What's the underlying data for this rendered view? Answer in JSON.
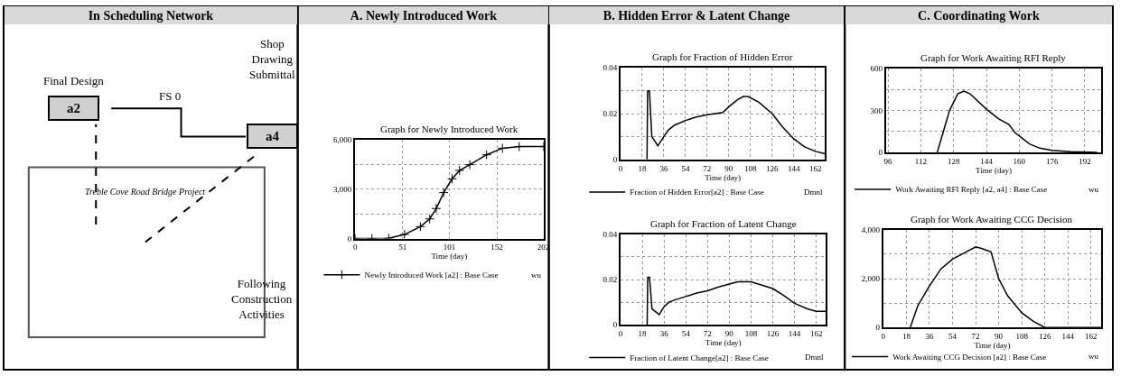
{
  "chart_data": [
    {
      "type": "other",
      "title": "In Scheduling Network",
      "annotations": [
        "Final Design",
        "a2",
        "FS 0",
        "Shop Drawing Submittal",
        "a4",
        "Treble Cove Road Bridge Project",
        "Following Construction Activities"
      ]
    },
    {
      "type": "line",
      "title": "Graph for Newly Introduced Work",
      "xlabel": "Time (day)",
      "annotations": [
        "A. Newly Introduced Work",
        "wu"
      ],
      "x": [
        0,
        18,
        36,
        53,
        70,
        80,
        87,
        95,
        104,
        112,
        123,
        141,
        158,
        176,
        202
      ],
      "series": [
        {
          "name": "Newly Introduced Work [a2] : Base Case",
          "color": "#000000",
          "values": [
            0,
            0,
            20,
            250,
            730,
            1200,
            1830,
            2800,
            3640,
            4150,
            4500,
            5100,
            5500,
            5600,
            5600
          ]
        }
      ],
      "xlim": [
        0,
        202
      ],
      "xticks": [
        0,
        51,
        101,
        152,
        202
      ],
      "ylim": [
        0,
        6000
      ],
      "yticks": [
        0,
        {
          "value": 1500,
          "label": null
        },
        {
          "value": 3000,
          "label": "3,000"
        },
        {
          "value": 4500,
          "label": null
        },
        {
          "value": 6000,
          "label": "6,000"
        }
      ],
      "grid": true,
      "legend": "bottom",
      "marker": "cross",
      "line_style": "solid"
    },
    {
      "type": "line",
      "title": "Graph for Fraction of Hidden Error",
      "xlabel": "Time (day)",
      "annotations": [
        "B. Hidden Error & Latent Change",
        "Dmnl"
      ],
      "x": [
        22,
        22.5,
        24,
        26,
        31,
        36,
        40,
        45,
        54,
        63,
        72,
        85,
        90,
        97,
        102,
        106,
        115,
        126,
        135,
        144,
        153,
        162,
        170
      ],
      "series": [
        {
          "name": "Fraction of Hidden Error[a2] : Base Case",
          "color": "#000000",
          "values": [
            0,
            0.03,
            0.03,
            0.01,
            0.006,
            0.01,
            0.013,
            0.015,
            0.017,
            0.0185,
            0.0195,
            0.0205,
            0.023,
            0.026,
            0.0275,
            0.0275,
            0.025,
            0.02,
            0.014,
            0.009,
            0.0055,
            0.0035,
            0.0025
          ]
        }
      ],
      "xlim": [
        0,
        170
      ],
      "xticks": [
        0,
        18,
        36,
        54,
        72,
        90,
        108,
        126,
        144,
        162
      ],
      "ylim": [
        0,
        0.04
      ],
      "yticks": [
        0,
        {
          "value": 0.01,
          "label": null
        },
        0.02,
        {
          "value": 0.03,
          "label": null
        },
        0.04
      ],
      "grid": true,
      "legend": "bottom",
      "line_style": "solid"
    },
    {
      "type": "line",
      "title": "Graph for Fraction of Latent Change",
      "xlabel": "Time (day)",
      "annotations": [
        "Dmnl"
      ],
      "x": [
        22,
        22.5,
        24,
        26,
        32,
        36,
        40,
        45,
        54,
        63,
        72,
        80,
        90,
        97,
        108,
        117,
        126,
        135,
        144,
        155,
        162,
        170
      ],
      "series": [
        {
          "name": "Fraction of Latent Change[a2] : Base Case",
          "color": "#000000",
          "values": [
            0,
            0.021,
            0.021,
            0.007,
            0.0045,
            0.008,
            0.01,
            0.011,
            0.0125,
            0.014,
            0.015,
            0.0165,
            0.018,
            0.019,
            0.019,
            0.0175,
            0.016,
            0.013,
            0.0095,
            0.007,
            0.006,
            0.006
          ]
        }
      ],
      "xlim": [
        0,
        170
      ],
      "xticks": [
        0,
        18,
        36,
        54,
        72,
        90,
        108,
        126,
        144,
        162
      ],
      "ylim": [
        0,
        0.04
      ],
      "yticks": [
        0,
        {
          "value": 0.01,
          "label": null
        },
        0.02,
        {
          "value": 0.03,
          "label": null
        },
        0.04
      ],
      "grid": true,
      "legend": "bottom",
      "line_style": "solid"
    },
    {
      "type": "line",
      "title": "Graph for Work Awaiting RFI Reply",
      "xlabel": "Time (day)",
      "annotations": [
        "C. Coordinating Work",
        "wu"
      ],
      "x": [
        120,
        123,
        126,
        130,
        133,
        136,
        144,
        150,
        155,
        158,
        165,
        170,
        176,
        185,
        198
      ],
      "series": [
        {
          "name": "Work Awaiting RFI Reply [a2, a4] : Base Case",
          "color": "#000000",
          "values": [
            0,
            150,
            300,
            420,
            440,
            420,
            310,
            240,
            200,
            140,
            60,
            30,
            15,
            5,
            0
          ]
        }
      ],
      "xlim": [
        95,
        200
      ],
      "xticks": [
        96,
        112,
        128,
        144,
        160,
        176,
        192
      ],
      "ylim": [
        0,
        600
      ],
      "yticks": [
        0,
        {
          "value": 150,
          "label": null
        },
        300,
        {
          "value": 450,
          "label": null
        },
        600
      ],
      "grid": true,
      "legend": "bottom",
      "line_style": "solid"
    },
    {
      "type": "line",
      "title": "Graph for Work Awaiting CCG Decision",
      "xlabel": "Time (day)",
      "annotations": [
        "wu"
      ],
      "x": [
        21,
        27,
        36,
        45,
        54,
        63,
        72,
        76,
        84,
        90,
        97,
        108,
        117,
        126,
        140,
        170
      ],
      "series": [
        {
          "name": "Work Awaiting CCG Decision [a2] : Base Case",
          "color": "#000000",
          "values": [
            0,
            900,
            1700,
            2400,
            2800,
            3050,
            3300,
            3250,
            3100,
            2000,
            1300,
            600,
            250,
            0,
            0,
            0
          ]
        }
      ],
      "xlim": [
        0,
        170
      ],
      "xticks": [
        0,
        18,
        36,
        54,
        72,
        90,
        108,
        126,
        144,
        162
      ],
      "ylim": [
        0,
        4000
      ],
      "yticks": [
        0,
        {
          "value": 1000,
          "label": null
        },
        {
          "value": 2000,
          "label": "2,000"
        },
        {
          "value": 3000,
          "label": null
        },
        {
          "value": 4000,
          "label": "4,000"
        }
      ],
      "grid": true,
      "legend": "bottom",
      "line_style": "solid"
    }
  ]
}
